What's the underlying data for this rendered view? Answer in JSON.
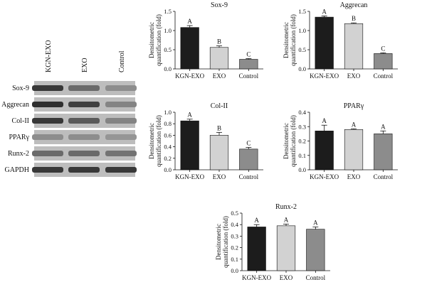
{
  "blot": {
    "lanes": [
      "KGN-EXO",
      "EXO",
      "Control"
    ],
    "proteins": [
      "Sox-9",
      "Aggrecan",
      "Col-II",
      "PPARγ",
      "Runx-2",
      "GAPDH"
    ]
  },
  "colors": {
    "KGN-EXO": "#1c1c1c",
    "EXO": "#d2d2d2",
    "Control": "#8c8c8c"
  },
  "chart_data": [
    {
      "type": "bar",
      "title": "Sox-9",
      "ylabel": [
        "Densitometric",
        "quantification (fold)"
      ],
      "categories": [
        "KGN-EXO",
        "EXO",
        "Control"
      ],
      "values": [
        1.08,
        0.56,
        0.25
      ],
      "errors": [
        0.05,
        0.04,
        0.02
      ],
      "significance": [
        "A",
        "B",
        "C"
      ],
      "ylim": [
        0,
        1.5
      ],
      "yticks": [
        "0.0",
        "0.5",
        "1.0",
        "1.5"
      ]
    },
    {
      "type": "bar",
      "title": "Aggrecan",
      "ylabel": [
        "Densitometric",
        "quantification (fold)"
      ],
      "categories": [
        "KGN-EXO",
        "EXO",
        "Control"
      ],
      "values": [
        1.35,
        1.18,
        0.4
      ],
      "errors": [
        0.03,
        0.02,
        0.02
      ],
      "significance": [
        "A",
        "B",
        "C"
      ],
      "ylim": [
        0,
        1.5
      ],
      "yticks": [
        "0.0",
        "0.5",
        "1.0",
        "1.5"
      ]
    },
    {
      "type": "bar",
      "title": "Col-II",
      "ylabel": [
        "Densitometric",
        "quantification (fold)"
      ],
      "categories": [
        "KGN-EXO",
        "EXO",
        "Control"
      ],
      "values": [
        0.85,
        0.6,
        0.36
      ],
      "errors": [
        0.03,
        0.05,
        0.03
      ],
      "significance": [
        "A",
        "B",
        "C"
      ],
      "ylim": [
        0,
        1.0
      ],
      "yticks": [
        "0.0",
        "0.2",
        "0.4",
        "0.6",
        "0.8",
        "1.0"
      ]
    },
    {
      "type": "bar",
      "title": "PPARγ",
      "ylabel": [
        "Densitometric",
        "quantification (fold)"
      ],
      "categories": [
        "KGN-EXO",
        "EXO",
        "Control"
      ],
      "values": [
        0.27,
        0.28,
        0.25
      ],
      "errors": [
        0.04,
        0.005,
        0.02
      ],
      "significance": [
        "A",
        "A",
        "A"
      ],
      "ylim": [
        0,
        0.4
      ],
      "yticks": [
        "0.0",
        "0.1",
        "0.2",
        "0.3",
        "0.4"
      ]
    },
    {
      "type": "bar",
      "title": "Runx-2",
      "ylabel": [
        "Densitometric",
        "quantification (fold)"
      ],
      "categories": [
        "KGN-EXO",
        "EXO",
        "Control"
      ],
      "values": [
        0.38,
        0.39,
        0.36
      ],
      "errors": [
        0.02,
        0.015,
        0.02
      ],
      "significance": [
        "A",
        "A",
        "A"
      ],
      "ylim": [
        0,
        0.5
      ],
      "yticks": [
        "0.0",
        "0.1",
        "0.2",
        "0.3",
        "0.4",
        "0.5"
      ]
    }
  ]
}
